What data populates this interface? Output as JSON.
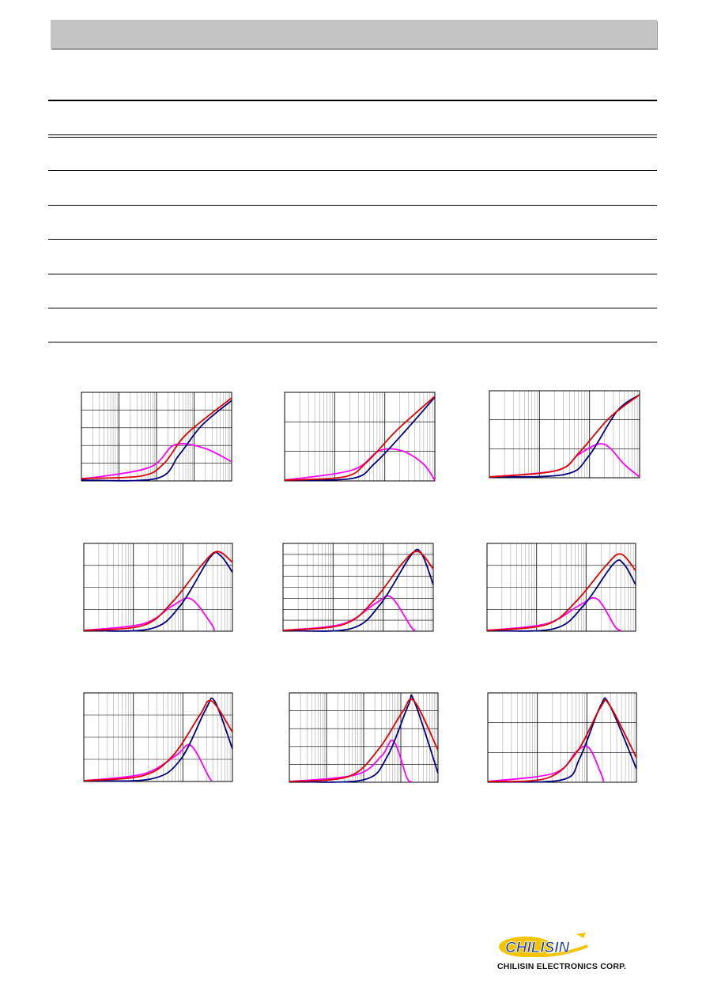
{
  "colors": {
    "header_bar": "#c4c4c4",
    "z_curve": "#e00000",
    "x_curve": "#000080",
    "r_curve": "#ff00ff",
    "grid": "#000000",
    "logo_yellow": "#f5c400",
    "logo_blue": "#1a3d9c"
  },
  "table": {
    "row_count": 7
  },
  "charts": [
    {
      "grid": "log-full",
      "z": [
        [
          0,
          0.02
        ],
        [
          0.4,
          0.05
        ],
        [
          0.55,
          0.2
        ],
        [
          0.7,
          0.55
        ],
        [
          1.0,
          0.98
        ]
      ],
      "x": [
        [
          0,
          0.0
        ],
        [
          0.5,
          0.02
        ],
        [
          0.65,
          0.3
        ],
        [
          0.8,
          0.65
        ],
        [
          1.0,
          0.95
        ]
      ],
      "r": [
        [
          0,
          0.01
        ],
        [
          0.45,
          0.15
        ],
        [
          0.62,
          0.42
        ],
        [
          0.82,
          0.38
        ],
        [
          1.0,
          0.22
        ]
      ]
    },
    {
      "grid": "log-sparse",
      "z": [
        [
          0,
          0.0
        ],
        [
          0.4,
          0.04
        ],
        [
          0.55,
          0.22
        ],
        [
          0.75,
          0.6
        ],
        [
          1.0,
          1.0
        ]
      ],
      "x": [
        [
          0,
          0.0
        ],
        [
          0.45,
          0.02
        ],
        [
          0.6,
          0.2
        ],
        [
          0.8,
          0.58
        ],
        [
          1.0,
          0.99
        ]
      ],
      "r": [
        [
          0,
          0.0
        ],
        [
          0.45,
          0.12
        ],
        [
          0.63,
          0.35
        ],
        [
          0.78,
          0.35
        ],
        [
          0.92,
          0.2
        ],
        [
          1.0,
          0.0
        ]
      ]
    },
    {
      "grid": "log-sparse",
      "z": [
        [
          0,
          0.0
        ],
        [
          0.45,
          0.08
        ],
        [
          0.6,
          0.3
        ],
        [
          0.8,
          0.72
        ],
        [
          1.0,
          1.0
        ]
      ],
      "x": [
        [
          0,
          0.0
        ],
        [
          0.5,
          0.03
        ],
        [
          0.66,
          0.25
        ],
        [
          0.85,
          0.8
        ],
        [
          1.0,
          1.0
        ]
      ],
      "r": [
        [
          0,
          0.0
        ],
        [
          0.45,
          0.08
        ],
        [
          0.6,
          0.28
        ],
        [
          0.76,
          0.4
        ],
        [
          0.9,
          0.15
        ],
        [
          1.0,
          0.0
        ]
      ]
    },
    {
      "grid": "log-mid",
      "z": [
        [
          0,
          0.0
        ],
        [
          0.4,
          0.06
        ],
        [
          0.6,
          0.35
        ],
        [
          0.8,
          0.8
        ],
        [
          0.9,
          0.95
        ],
        [
          1.0,
          0.82
        ]
      ],
      "x": [
        [
          0,
          0.0
        ],
        [
          0.45,
          0.02
        ],
        [
          0.65,
          0.3
        ],
        [
          0.85,
          0.88
        ],
        [
          0.92,
          0.9
        ],
        [
          1.0,
          0.7
        ]
      ],
      "r": [
        [
          0,
          0.0
        ],
        [
          0.4,
          0.08
        ],
        [
          0.6,
          0.3
        ],
        [
          0.72,
          0.38
        ],
        [
          0.85,
          0.1
        ],
        [
          0.88,
          0.0
        ]
      ]
    },
    {
      "grid": "log-dense",
      "z": [
        [
          0,
          0.0
        ],
        [
          0.4,
          0.07
        ],
        [
          0.6,
          0.35
        ],
        [
          0.8,
          0.82
        ],
        [
          0.9,
          0.95
        ],
        [
          1.0,
          0.74
        ]
      ],
      "x": [
        [
          0,
          0.0
        ],
        [
          0.45,
          0.02
        ],
        [
          0.65,
          0.32
        ],
        [
          0.85,
          0.9
        ],
        [
          0.92,
          0.93
        ],
        [
          1.0,
          0.55
        ]
      ],
      "r": [
        [
          0,
          0.0
        ],
        [
          0.4,
          0.08
        ],
        [
          0.62,
          0.33
        ],
        [
          0.72,
          0.4
        ],
        [
          0.85,
          0.05
        ],
        [
          0.88,
          0.0
        ]
      ]
    },
    {
      "grid": "log-mid",
      "z": [
        [
          0,
          0.0
        ],
        [
          0.4,
          0.07
        ],
        [
          0.6,
          0.35
        ],
        [
          0.8,
          0.78
        ],
        [
          0.9,
          0.92
        ],
        [
          1.0,
          0.72
        ]
      ],
      "x": [
        [
          0,
          0.0
        ],
        [
          0.45,
          0.02
        ],
        [
          0.65,
          0.3
        ],
        [
          0.85,
          0.8
        ],
        [
          0.92,
          0.8
        ],
        [
          1.0,
          0.55
        ]
      ],
      "r": [
        [
          0,
          0.0
        ],
        [
          0.4,
          0.08
        ],
        [
          0.62,
          0.3
        ],
        [
          0.74,
          0.38
        ],
        [
          0.86,
          0.05
        ],
        [
          0.9,
          0.0
        ]
      ]
    },
    {
      "grid": "log-mid",
      "z": [
        [
          0,
          0.0
        ],
        [
          0.4,
          0.06
        ],
        [
          0.6,
          0.3
        ],
        [
          0.78,
          0.78
        ],
        [
          0.86,
          0.95
        ],
        [
          1.0,
          0.58
        ]
      ],
      "x": [
        [
          0,
          0.0
        ],
        [
          0.45,
          0.02
        ],
        [
          0.65,
          0.25
        ],
        [
          0.82,
          0.85
        ],
        [
          0.88,
          0.95
        ],
        [
          1.0,
          0.38
        ]
      ],
      "r": [
        [
          0,
          0.0
        ],
        [
          0.4,
          0.08
        ],
        [
          0.62,
          0.3
        ],
        [
          0.72,
          0.42
        ],
        [
          0.84,
          0.05
        ],
        [
          0.86,
          0.0
        ]
      ]
    },
    {
      "grid": "log-full",
      "z": [
        [
          0,
          0.0
        ],
        [
          0.4,
          0.06
        ],
        [
          0.6,
          0.38
        ],
        [
          0.76,
          0.82
        ],
        [
          0.84,
          0.95
        ],
        [
          1.0,
          0.37
        ]
      ],
      "x": [
        [
          0,
          0.0
        ],
        [
          0.5,
          0.02
        ],
        [
          0.66,
          0.3
        ],
        [
          0.8,
          0.9
        ],
        [
          0.84,
          0.95
        ],
        [
          1.0,
          0.1
        ]
      ],
      "r": [
        [
          0,
          0.0
        ],
        [
          0.45,
          0.08
        ],
        [
          0.62,
          0.3
        ],
        [
          0.7,
          0.48
        ],
        [
          0.79,
          0.05
        ],
        [
          0.82,
          0.0
        ]
      ]
    },
    {
      "grid": "log-sparse",
      "z": [
        [
          0,
          0.0
        ],
        [
          0.4,
          0.04
        ],
        [
          0.6,
          0.35
        ],
        [
          0.76,
          0.88
        ],
        [
          0.82,
          0.9
        ],
        [
          1.0,
          0.28
        ]
      ],
      "x": [
        [
          0,
          0.0
        ],
        [
          0.5,
          0.02
        ],
        [
          0.62,
          0.28
        ],
        [
          0.76,
          0.9
        ],
        [
          0.82,
          0.9
        ],
        [
          1.0,
          0.15
        ]
      ],
      "r": [
        [
          0,
          0.0
        ],
        [
          0.45,
          0.1
        ],
        [
          0.6,
          0.36
        ],
        [
          0.68,
          0.4
        ],
        [
          0.76,
          0.1
        ],
        [
          0.78,
          0.0
        ]
      ]
    }
  ],
  "logo": {
    "wordmark": "CHILISIN",
    "company": "CHILISIN ELECTRONICS CORP."
  }
}
